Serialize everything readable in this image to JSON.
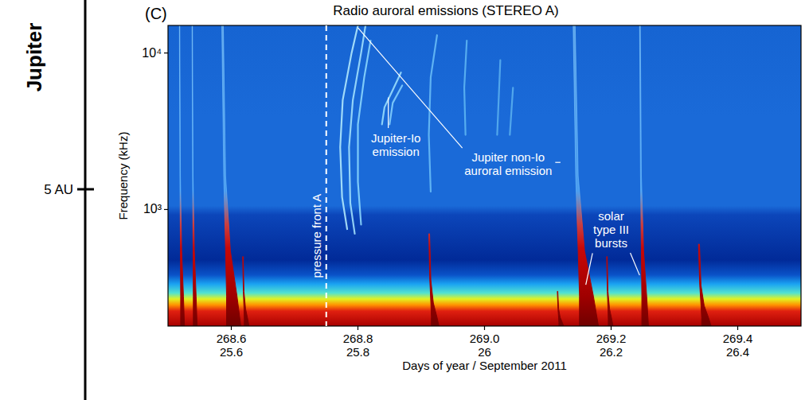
{
  "chart_data": {
    "type": "spectrogram",
    "title": "Radio auroral emissions (STEREO A)",
    "panel_label": "(C)",
    "row_label": "Jupiter",
    "distance_label": "5 AU",
    "x_label": "Days of year / September 2011",
    "y_label": "Frequency (kHz)",
    "log": "y",
    "xlim": [
      268.5,
      269.5
    ],
    "xticks": [
      268.6,
      268.8,
      {
        "value": 269,
        "label": "269.0"
      },
      269.2,
      269.4
    ],
    "x_date_labels": [
      "25.6",
      "25.8",
      "26",
      "26.2",
      "26.4"
    ],
    "ylim": [
      180,
      15000
    ],
    "yticks": [
      {
        "value": 1000,
        "label": "10³"
      },
      {
        "value": 10000,
        "label": "10⁴"
      }
    ],
    "bursts": [
      {
        "time": 268.518,
        "top_freq": 15000,
        "duration": 0.008
      },
      {
        "time": 268.538,
        "top_freq": 15000,
        "duration": 0.008
      },
      {
        "time": 268.585,
        "top_freq": 15000,
        "duration": 0.03
      },
      {
        "time": 268.618,
        "top_freq": 500,
        "duration": 0.01
      },
      {
        "time": 268.912,
        "top_freq": 700,
        "duration": 0.016
      },
      {
        "time": 269.115,
        "top_freq": 300,
        "duration": 0.01
      },
      {
        "time": 269.14,
        "top_freq": 15000,
        "duration": 0.04
      },
      {
        "time": 269.193,
        "top_freq": 500,
        "duration": 0.01
      },
      {
        "time": 269.245,
        "top_freq": 15000,
        "duration": 0.014
      },
      {
        "time": 269.338,
        "top_freq": 600,
        "duration": 0.02
      }
    ],
    "arcs": [
      {
        "color": "#b8eeff",
        "x": [
          268.783,
          268.775,
          268.772,
          268.776,
          268.79,
          268.8
        ],
        "y": [
          750,
          1200,
          2500,
          5000,
          10000,
          15000
        ]
      },
      {
        "color": "#a8e6ff",
        "x": [
          268.795,
          268.788,
          268.786,
          268.792,
          268.805,
          268.812
        ],
        "y": [
          700,
          1100,
          2500,
          5000,
          10000,
          15000
        ]
      },
      {
        "color": "#90dcff",
        "x": [
          268.805,
          268.8,
          268.8,
          268.81,
          268.82
        ],
        "y": [
          800,
          1500,
          3500,
          7000,
          12000
        ]
      },
      {
        "color": "#a0e4ff",
        "x": [
          268.838,
          268.842,
          268.855,
          268.868
        ],
        "y": [
          3500,
          4500,
          5800,
          7500
        ]
      },
      {
        "color": "#88d4ff",
        "x": [
          268.85,
          268.855,
          268.87
        ],
        "y": [
          3500,
          4800,
          6200
        ]
      },
      {
        "color": "#6cc0f8",
        "x": [
          268.915,
          268.912,
          268.915,
          268.925
        ],
        "y": [
          1300,
          3000,
          7000,
          13000
        ]
      },
      {
        "color": "#60b8f4",
        "x": [
          268.97,
          268.968,
          268.972
        ],
        "y": [
          3000,
          6000,
          12000
        ]
      },
      {
        "color": "#5cb2f0",
        "x": [
          269.02,
          269.025
        ],
        "y": [
          3000,
          9000
        ]
      },
      {
        "color": "#5cb2f0",
        "x": [
          269.04,
          269.045
        ],
        "y": [
          3000,
          6000
        ]
      }
    ],
    "annotations": [
      {
        "text": "pressure front A",
        "x": 268.75,
        "line_style": "dashed"
      },
      {
        "text": "Jupiter-Io emission",
        "x": 268.86,
        "y": 2580,
        "targets": {
          "x": [
            268.848
          ],
          "y": [
            5200
          ]
        }
      },
      {
        "text": "Jupiter non-Io auroral emission",
        "x": 269.0375,
        "y": 1946,
        "targets": {
          "x": [
            268.8,
            269.12
          ],
          "y": [
            14500,
            2000
          ]
        }
      },
      {
        "text": "solar type III bursts",
        "x": 269.2,
        "y": 738,
        "targets": {
          "x": [
            269.16,
            269.245
          ],
          "y": [
            330,
            380
          ]
        }
      }
    ]
  }
}
